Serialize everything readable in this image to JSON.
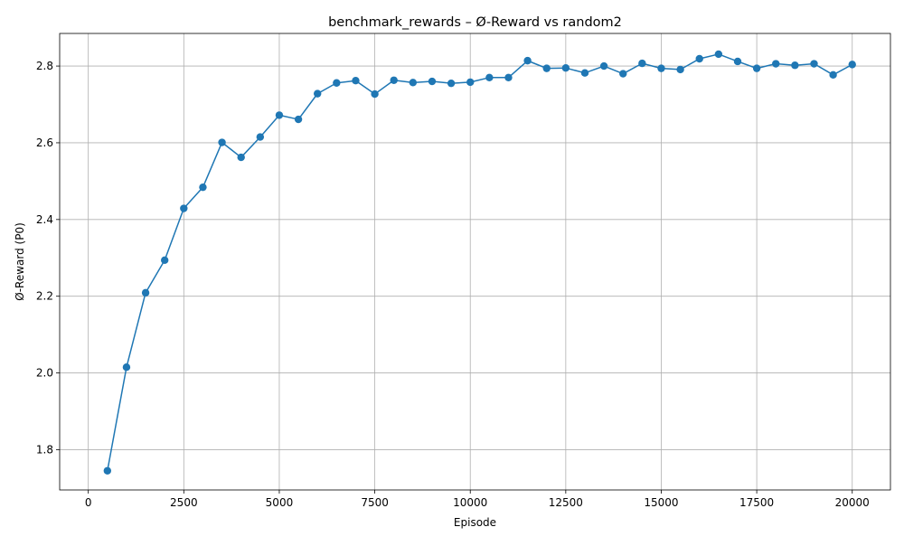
{
  "chart_data": {
    "type": "line",
    "title": "benchmark_rewards – Ø-Reward vs random2",
    "xlabel": "Episode",
    "ylabel": "Ø-Reward (P0)",
    "xlim": [
      -750,
      21000
    ],
    "ylim": [
      1.695,
      2.885
    ],
    "xticks": [
      0,
      2500,
      5000,
      7500,
      10000,
      12500,
      15000,
      17500,
      20000
    ],
    "xtick_labels": [
      "0",
      "2500",
      "5000",
      "7500",
      "10000",
      "12500",
      "15000",
      "17500",
      "20000"
    ],
    "yticks": [
      1.8,
      2.0,
      2.2,
      2.4,
      2.6,
      2.8
    ],
    "ytick_labels": [
      "1.8",
      "2.0",
      "2.2",
      "2.4",
      "2.6",
      "2.8"
    ],
    "grid": true,
    "marker": "circle",
    "color": "#1f77b4",
    "series": [
      {
        "x": [
          500,
          1000,
          1500,
          2000,
          2500,
          3000,
          3500,
          4000,
          4500,
          5000,
          5500,
          6000,
          6500,
          7000,
          7500,
          8000,
          8500,
          9000,
          9500,
          10000,
          10500,
          11000,
          11500,
          12000,
          12500,
          13000,
          13500,
          14000,
          14500,
          15000,
          15500,
          16000,
          16500,
          17000,
          17500,
          18000,
          18500,
          19000,
          19500,
          20000
        ],
        "y": [
          1.745,
          2.015,
          2.209,
          2.294,
          2.429,
          2.484,
          2.601,
          2.562,
          2.615,
          2.672,
          2.661,
          2.728,
          2.756,
          2.762,
          2.727,
          2.763,
          2.757,
          2.76,
          2.755,
          2.758,
          2.77,
          2.77,
          2.814,
          2.794,
          2.795,
          2.782,
          2.8,
          2.78,
          2.807,
          2.794,
          2.791,
          2.819,
          2.831,
          2.812,
          2.794,
          2.806,
          2.802,
          2.806,
          2.777,
          2.804
        ]
      }
    ]
  }
}
